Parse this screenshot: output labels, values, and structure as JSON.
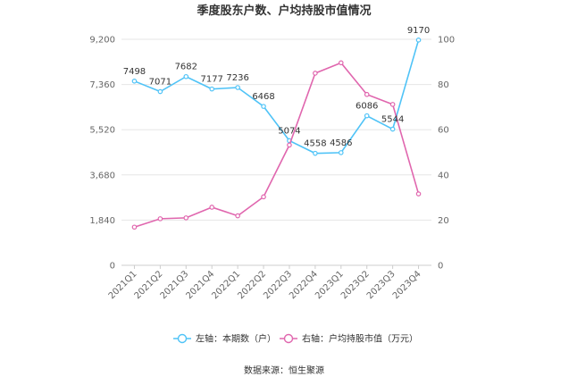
{
  "chart_data": {
    "type": "line",
    "title": "季度股东户数、户均持股市值情况",
    "categories": [
      "2021Q1",
      "2021Q2",
      "2021Q3",
      "2021Q4",
      "2022Q1",
      "2022Q2",
      "2022Q3",
      "2022Q4",
      "2023Q1",
      "2023Q2",
      "2023Q3",
      "2023Q4"
    ],
    "left_axis": {
      "ylim": [
        0,
        9200
      ],
      "ticks": [
        "0",
        "1,840",
        "3,680",
        "5,520",
        "7,360",
        "9,200"
      ]
    },
    "right_axis": {
      "ylim": [
        0,
        100
      ],
      "ticks": [
        "0",
        "20",
        "40",
        "60",
        "80",
        "100"
      ]
    },
    "series": [
      {
        "name": "左轴：本期数（户）",
        "axis": "left",
        "color": "#4FC3F7",
        "values": [
          7498,
          7071,
          7682,
          7177,
          7236,
          6468,
          5074,
          4558,
          4586,
          6086,
          5544,
          9170
        ],
        "labels": [
          "7498",
          "7071",
          "7682",
          "7177",
          "7236",
          "6468",
          "5074",
          "4558",
          "4586",
          "6086",
          "5544",
          "9170"
        ]
      },
      {
        "name": "右轴：户均持股市值（万元）",
        "axis": "right",
        "color": "#E066AE",
        "values": [
          16.9,
          20.6,
          21.0,
          25.7,
          21.9,
          30.3,
          53.2,
          85.0,
          89.6,
          75.6,
          71.2,
          31.6
        ]
      }
    ],
    "grid": true,
    "legend": "bottom-center"
  },
  "source": "数据来源：恒生聚源"
}
